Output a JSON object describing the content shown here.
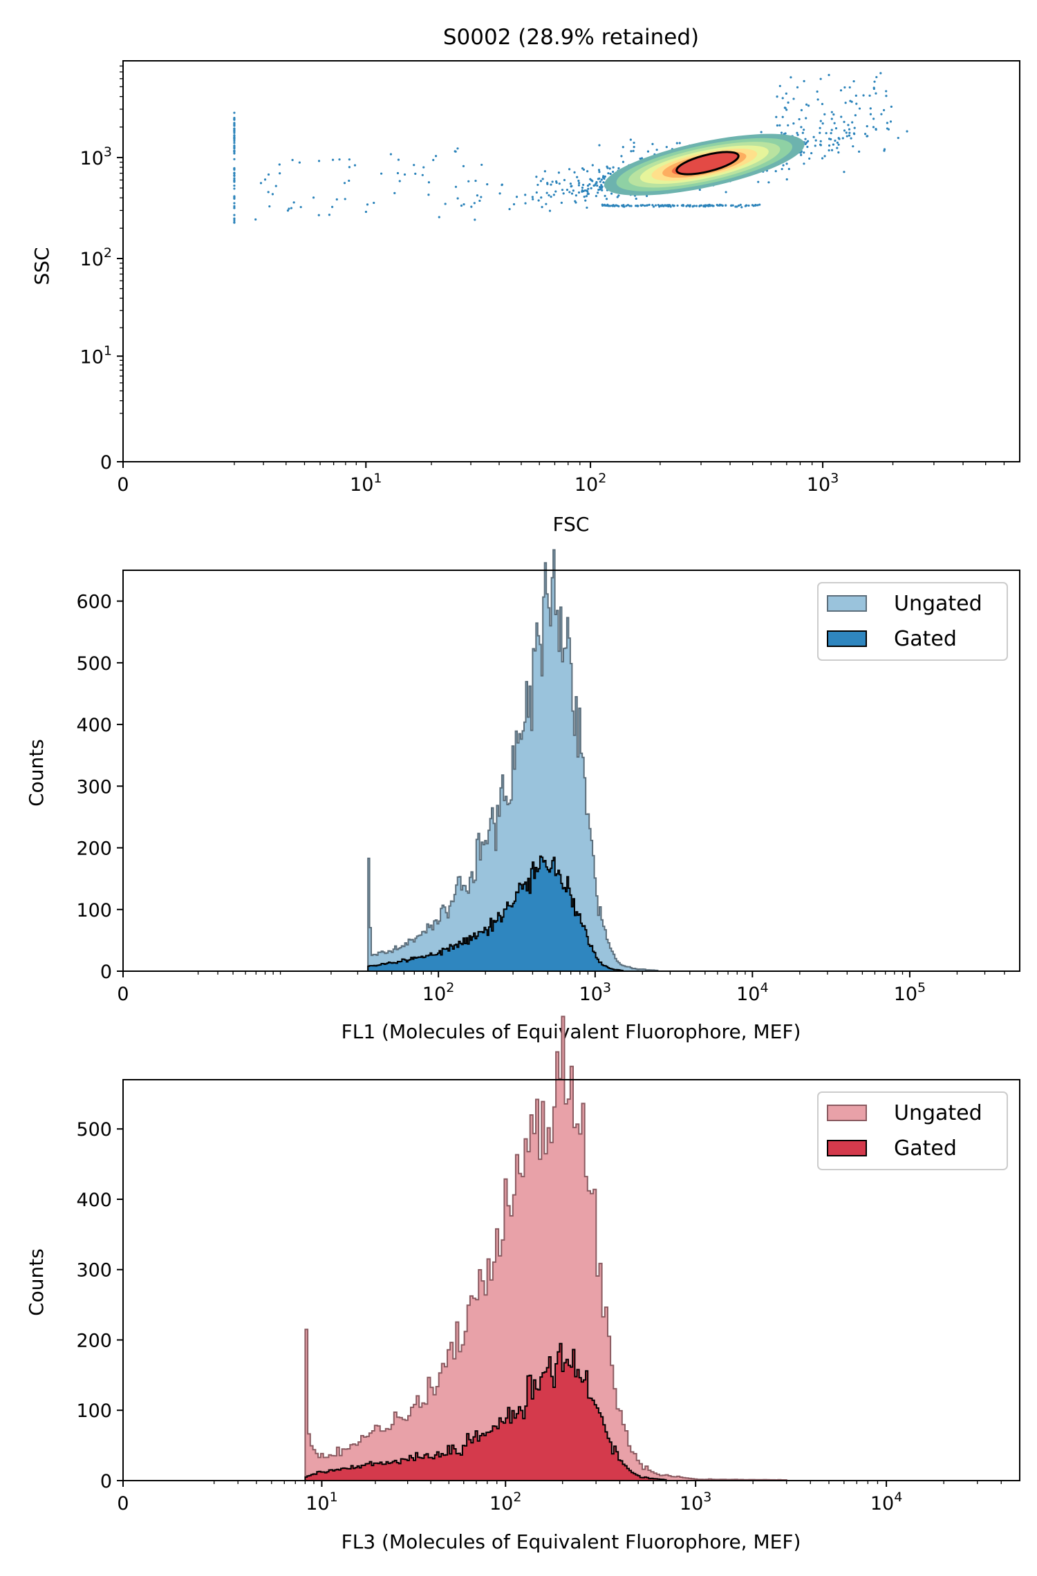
{
  "chart_data": [
    {
      "type": "scatter",
      "title": "S0002 (28.9% retained)",
      "xlabel": "FSC",
      "ylabel": "SSC",
      "xscale": "symlog",
      "yscale": "symlog",
      "xlim": [
        0,
        7000
      ],
      "ylim": [
        0,
        9000
      ],
      "x_ticks": [
        {
          "value": 0,
          "base": "0",
          "exp": ""
        },
        {
          "value": 10,
          "base": "10",
          "exp": "1"
        },
        {
          "value": 100,
          "base": "10",
          "exp": "2"
        },
        {
          "value": 1000,
          "base": "10",
          "exp": "3"
        }
      ],
      "y_ticks": [
        {
          "value": 0,
          "base": "0",
          "exp": ""
        },
        {
          "value": 10,
          "base": "10",
          "exp": "1"
        },
        {
          "value": 100,
          "base": "10",
          "exp": "2"
        },
        {
          "value": 1000,
          "base": "10",
          "exp": "3"
        }
      ],
      "cloud": {
        "center_fsc": 310,
        "center_ssc": 850
      },
      "gate": {
        "shape": "ellipse",
        "center_fsc": 320,
        "center_ssc": 880
      },
      "density_colormap": "Spectral_r",
      "point_color": "#2b83ba"
    },
    {
      "type": "histogram",
      "xlabel": "FL1 (Molecules of Equivalent Fluorophore, MEF)",
      "ylabel": "Counts",
      "xscale": "symlog",
      "xlim": [
        0,
        500000
      ],
      "ylim": [
        0,
        650
      ],
      "x_ticks": [
        {
          "value": 0,
          "base": "0",
          "exp": ""
        },
        {
          "value": 100,
          "base": "10",
          "exp": "2"
        },
        {
          "value": 1000,
          "base": "10",
          "exp": "3"
        },
        {
          "value": 10000,
          "base": "10",
          "exp": "4"
        },
        {
          "value": 100000,
          "base": "10",
          "exp": "5"
        }
      ],
      "y_ticks": [
        0,
        100,
        200,
        300,
        400,
        500,
        600
      ],
      "legend": {
        "position": "top-right",
        "entries": [
          "Ungated",
          "Gated"
        ]
      },
      "series": [
        {
          "name": "Ungated",
          "color": "#9ac3dc",
          "edge_color": "#5b6d7a",
          "points": [
            [
              35,
              183
            ],
            [
              37,
              25
            ],
            [
              45,
              32
            ],
            [
              55,
              38
            ],
            [
              70,
              48
            ],
            [
              90,
              72
            ],
            [
              110,
              95
            ],
            [
              130,
              125
            ],
            [
              150,
              150
            ],
            [
              175,
              185
            ],
            [
              200,
              215
            ],
            [
              240,
              260
            ],
            [
              280,
              300
            ],
            [
              320,
              360
            ],
            [
              370,
              420
            ],
            [
              420,
              500
            ],
            [
              460,
              560
            ],
            [
              500,
              600
            ],
            [
              540,
              610
            ],
            [
              580,
              590
            ],
            [
              640,
              560
            ],
            [
              700,
              500
            ],
            [
              780,
              420
            ],
            [
              860,
              300
            ],
            [
              950,
              200
            ],
            [
              1050,
              110
            ],
            [
              1150,
              60
            ],
            [
              1300,
              25
            ],
            [
              1500,
              10
            ],
            [
              1800,
              4
            ],
            [
              2500,
              1
            ]
          ]
        },
        {
          "name": "Gated",
          "color": "#2f86bf",
          "edge_color": "#000000",
          "points": [
            [
              35,
              8
            ],
            [
              40,
              10
            ],
            [
              50,
              14
            ],
            [
              60,
              18
            ],
            [
              75,
              22
            ],
            [
              95,
              28
            ],
            [
              120,
              38
            ],
            [
              150,
              50
            ],
            [
              185,
              62
            ],
            [
              220,
              72
            ],
            [
              260,
              90
            ],
            [
              300,
              115
            ],
            [
              340,
              130
            ],
            [
              380,
              150
            ],
            [
              420,
              170
            ],
            [
              470,
              180
            ],
            [
              520,
              175
            ],
            [
              570,
              160
            ],
            [
              630,
              140
            ],
            [
              700,
              115
            ],
            [
              770,
              95
            ],
            [
              850,
              70
            ],
            [
              930,
              45
            ],
            [
              1000,
              25
            ],
            [
              1100,
              12
            ],
            [
              1250,
              4
            ],
            [
              1500,
              1
            ]
          ]
        }
      ]
    },
    {
      "type": "histogram",
      "xlabel": "FL3 (Molecules of Equivalent Fluorophore, MEF)",
      "ylabel": "Counts",
      "xscale": "symlog",
      "xlim": [
        0,
        50000
      ],
      "ylim": [
        0,
        570
      ],
      "x_ticks": [
        {
          "value": 0,
          "base": "0",
          "exp": ""
        },
        {
          "value": 10,
          "base": "10",
          "exp": "1"
        },
        {
          "value": 100,
          "base": "10",
          "exp": "2"
        },
        {
          "value": 1000,
          "base": "10",
          "exp": "3"
        },
        {
          "value": 10000,
          "base": "10",
          "exp": "4"
        }
      ],
      "y_ticks": [
        0,
        100,
        200,
        300,
        400,
        500
      ],
      "legend": {
        "position": "top-right",
        "entries": [
          "Ungated",
          "Gated"
        ]
      },
      "series": [
        {
          "name": "Ungated",
          "color": "#e8a1a8",
          "edge_color": "#8a5a60",
          "points": [
            [
              8,
              215
            ],
            [
              8.5,
              45
            ],
            [
              10,
              35
            ],
            [
              12,
              40
            ],
            [
              15,
              50
            ],
            [
              18,
              60
            ],
            [
              22,
              75
            ],
            [
              27,
              90
            ],
            [
              33,
              105
            ],
            [
              40,
              125
            ],
            [
              48,
              160
            ],
            [
              58,
              200
            ],
            [
              70,
              250
            ],
            [
              85,
              310
            ],
            [
              100,
              370
            ],
            [
              120,
              430
            ],
            [
              140,
              480
            ],
            [
              165,
              510
            ],
            [
              190,
              530
            ],
            [
              215,
              540
            ],
            [
              245,
              520
            ],
            [
              275,
              440
            ],
            [
              310,
              320
            ],
            [
              350,
              200
            ],
            [
              400,
              100
            ],
            [
              450,
              50
            ],
            [
              520,
              20
            ],
            [
              650,
              8
            ],
            [
              1000,
              2
            ],
            [
              3000,
              1
            ]
          ]
        },
        {
          "name": "Gated",
          "color": "#d43a4c",
          "edge_color": "#000000",
          "points": [
            [
              8,
              5
            ],
            [
              9,
              10
            ],
            [
              11,
              14
            ],
            [
              14,
              18
            ],
            [
              18,
              22
            ],
            [
              23,
              26
            ],
            [
              30,
              30
            ],
            [
              38,
              35
            ],
            [
              48,
              42
            ],
            [
              60,
              52
            ],
            [
              75,
              65
            ],
            [
              95,
              80
            ],
            [
              115,
              100
            ],
            [
              135,
              125
            ],
            [
              160,
              145
            ],
            [
              185,
              155
            ],
            [
              210,
              160
            ],
            [
              240,
              150
            ],
            [
              270,
              130
            ],
            [
              305,
              100
            ],
            [
              345,
              65
            ],
            [
              390,
              35
            ],
            [
              440,
              15
            ],
            [
              520,
              5
            ],
            [
              700,
              1
            ]
          ]
        }
      ]
    }
  ]
}
